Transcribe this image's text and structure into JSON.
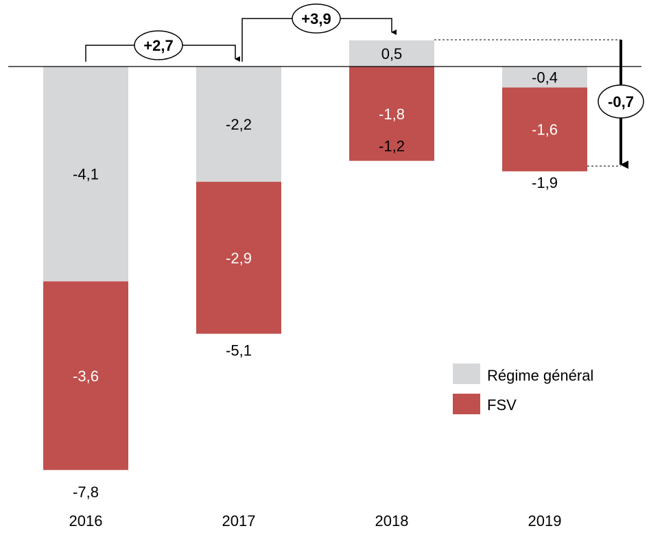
{
  "chart_data": {
    "type": "bar",
    "stacked": true,
    "categories": [
      "2016",
      "2017",
      "2018",
      "2019"
    ],
    "series": [
      {
        "name": "Régime général",
        "color": "#d6d7d9",
        "values": [
          -4.1,
          -2.2,
          0.5,
          -0.4
        ],
        "labels": [
          "-4,1",
          "-2,2",
          "0,5",
          "-0,4"
        ]
      },
      {
        "name": "FSV",
        "color": "#c0504d",
        "values": [
          -3.6,
          -2.9,
          -1.8,
          -1.6
        ],
        "labels": [
          "-3,6",
          "-2,9",
          "-1,8",
          "-1,6"
        ]
      }
    ],
    "totals": [
      -7.8,
      -5.1,
      -1.2,
      -1.9
    ],
    "total_labels": [
      "-7,8",
      "-5,1",
      "-1,2",
      "-1,9"
    ],
    "annotations": [
      {
        "from": "2016",
        "to": "2017",
        "label": "+2,7"
      },
      {
        "from": "2017",
        "to": "2018",
        "label": "+3,9"
      },
      {
        "from": "2018",
        "to": "2019",
        "label": "-0,7"
      }
    ],
    "legend": {
      "position": "bottom-right",
      "entries": [
        "Régime général",
        "FSV"
      ]
    },
    "grid": false
  }
}
